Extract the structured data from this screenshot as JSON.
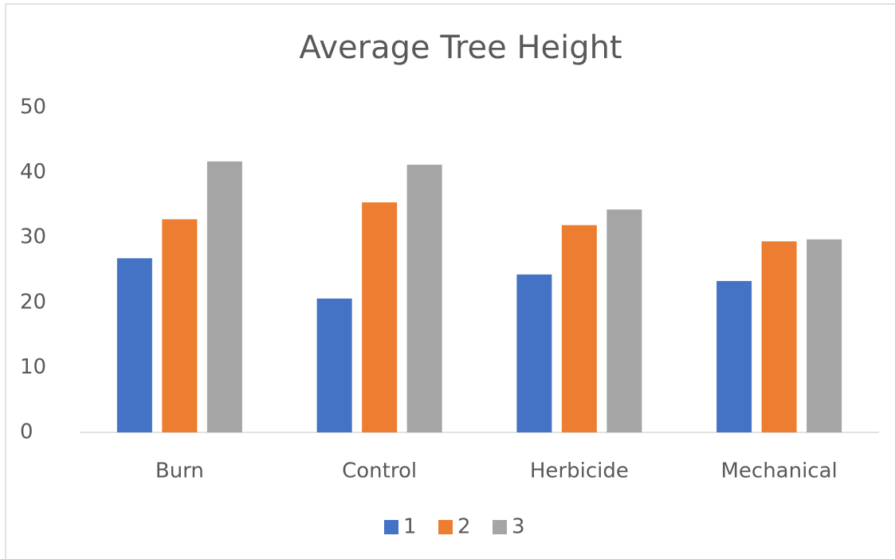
{
  "chart_data": {
    "type": "bar",
    "title": "Average Tree Height",
    "categories": [
      "Burn",
      "Control",
      "Herbicide",
      "Mechanical"
    ],
    "series": [
      {
        "name": "1",
        "color": "#4472c4",
        "values": [
          26.8,
          20.6,
          24.3,
          23.3
        ]
      },
      {
        "name": "2",
        "color": "#ed7d31",
        "values": [
          32.8,
          35.4,
          31.9,
          29.4
        ]
      },
      {
        "name": "3",
        "color": "#a5a5a5",
        "values": [
          41.7,
          41.2,
          34.3,
          29.7
        ]
      }
    ],
    "ylim": [
      0,
      50
    ],
    "yticks": [
      0,
      10,
      20,
      30,
      40,
      50
    ],
    "grid": false,
    "legend": "bottom"
  }
}
